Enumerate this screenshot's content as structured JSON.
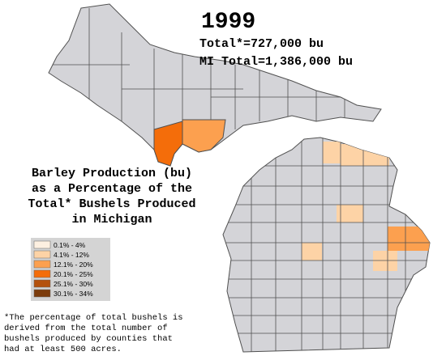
{
  "title": "1999",
  "totals": [
    "Total*=727,000 bu",
    "MI Total=1,386,000 bu"
  ],
  "subtitle": [
    "Barley Production (bu)",
    "as a Percentage of the",
    "Total* Bushels Produced",
    "in Michigan"
  ],
  "legend": [
    {
      "label": "0.1% - 4%",
      "color": "#fdf0e1"
    },
    {
      "label": "4.1% - 12%",
      "color": "#fdd3a6"
    },
    {
      "label": "12.1% - 20%",
      "color": "#fca04f"
    },
    {
      "label": "20.1% - 25%",
      "color": "#f46d0a"
    },
    {
      "label": "25.1% - 30%",
      "color": "#b4510d"
    },
    {
      "label": "30.1% - 34%",
      "color": "#7c3c0c"
    }
  ],
  "footnote": [
    "*The percentage of total bushels is",
    "derived from the total number of",
    "bushels produced by counties that",
    "had at least 500 acres."
  ]
}
